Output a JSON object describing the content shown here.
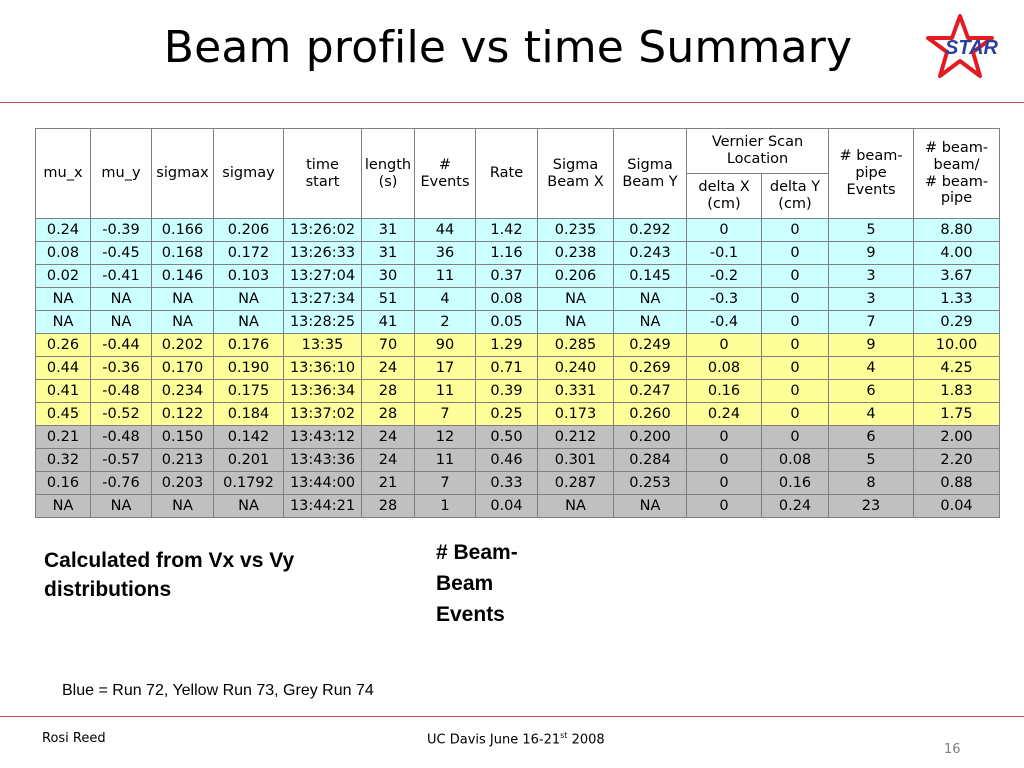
{
  "title": "Beam profile vs time Summary",
  "logo_text": "STAR",
  "colors": {
    "accent_rule": "#c0504d",
    "row_blue": "#ccffff",
    "row_yellow": "#ffff99",
    "row_grey": "#c0c0c0",
    "logo_red": "#e31b23",
    "logo_blue": "#2b3f9e"
  },
  "table": {
    "headers": {
      "mu_x": "mu_x",
      "mu_y": "mu_y",
      "sigmax": "sigmax",
      "sigmay": "sigmay",
      "time_start": [
        "time",
        "start"
      ],
      "length": [
        "length",
        "(s)"
      ],
      "events": [
        "#",
        "Events"
      ],
      "rate": "Rate",
      "sigma_beam_x": [
        "Sigma",
        "Beam X"
      ],
      "sigma_beam_y": [
        "Sigma",
        "Beam Y"
      ],
      "vernier": [
        "Vernier Scan",
        "Location"
      ],
      "delta_x": [
        "delta X",
        "(cm)"
      ],
      "delta_y": [
        "delta Y",
        "(cm)"
      ],
      "beam_pipe_events": [
        "# beam-",
        "pipe",
        "Events"
      ],
      "ratio": [
        "# beam-",
        "beam/",
        "# beam-",
        "pipe"
      ]
    },
    "rows": [
      {
        "group": "blue",
        "cells": [
          "0.24",
          "-0.39",
          "0.166",
          "0.206",
          "13:26:02",
          "31",
          "44",
          "1.42",
          "0.235",
          "0.292",
          "0",
          "0",
          "5",
          "8.80"
        ]
      },
      {
        "group": "blue",
        "cells": [
          "0.08",
          "-0.45",
          "0.168",
          "0.172",
          "13:26:33",
          "31",
          "36",
          "1.16",
          "0.238",
          "0.243",
          "-0.1",
          "0",
          "9",
          "4.00"
        ]
      },
      {
        "group": "blue",
        "cells": [
          "0.02",
          "-0.41",
          "0.146",
          "0.103",
          "13:27:04",
          "30",
          "11",
          "0.37",
          "0.206",
          "0.145",
          "-0.2",
          "0",
          "3",
          "3.67"
        ]
      },
      {
        "group": "blue",
        "cells": [
          "NA",
          "NA",
          "NA",
          "NA",
          "13:27:34",
          "51",
          "4",
          "0.08",
          "NA",
          "NA",
          "-0.3",
          "0",
          "3",
          "1.33"
        ]
      },
      {
        "group": "blue",
        "cells": [
          "NA",
          "NA",
          "NA",
          "NA",
          "13:28:25",
          "41",
          "2",
          "0.05",
          "NA",
          "NA",
          "-0.4",
          "0",
          "7",
          "0.29"
        ]
      },
      {
        "group": "yellow",
        "cells": [
          "0.26",
          "-0.44",
          "0.202",
          "0.176",
          "13:35",
          "70",
          "90",
          "1.29",
          "0.285",
          "0.249",
          "0",
          "0",
          "9",
          "10.00"
        ]
      },
      {
        "group": "yellow",
        "cells": [
          "0.44",
          "-0.36",
          "0.170",
          "0.190",
          "13:36:10",
          "24",
          "17",
          "0.71",
          "0.240",
          "0.269",
          "0.08",
          "0",
          "4",
          "4.25"
        ]
      },
      {
        "group": "yellow",
        "cells": [
          "0.41",
          "-0.48",
          "0.234",
          "0.175",
          "13:36:34",
          "28",
          "11",
          "0.39",
          "0.331",
          "0.247",
          "0.16",
          "0",
          "6",
          "1.83"
        ]
      },
      {
        "group": "yellow",
        "cells": [
          "0.45",
          "-0.52",
          "0.122",
          "0.184",
          "13:37:02",
          "28",
          "7",
          "0.25",
          "0.173",
          "0.260",
          "0.24",
          "0",
          "4",
          "1.75"
        ]
      },
      {
        "group": "grey",
        "cells": [
          "0.21",
          "-0.48",
          "0.150",
          "0.142",
          "13:43:12",
          "24",
          "12",
          "0.50",
          "0.212",
          "0.200",
          "0",
          "0",
          "6",
          "2.00"
        ]
      },
      {
        "group": "grey",
        "cells": [
          "0.32",
          "-0.57",
          "0.213",
          "0.201",
          "13:43:36",
          "24",
          "11",
          "0.46",
          "0.301",
          "0.284",
          "0",
          "0.08",
          "5",
          "2.20"
        ]
      },
      {
        "group": "grey",
        "cells": [
          "0.16",
          "-0.76",
          "0.203",
          "0.1792",
          "13:44:00",
          "21",
          "7",
          "0.33",
          "0.287",
          "0.253",
          "0",
          "0.16",
          "8",
          "0.88"
        ]
      },
      {
        "group": "grey",
        "cells": [
          "NA",
          "NA",
          "NA",
          "NA",
          "13:44:21",
          "28",
          "1",
          "0.04",
          "NA",
          "NA",
          "0",
          "0.24",
          "23",
          "0.04"
        ]
      }
    ]
  },
  "note_left": "Calculated from Vx vs Vy distributions",
  "note_mid": "# Beam-Beam Events",
  "legend": "Blue = Run 72, Yellow Run 73, Grey Run 74",
  "footer": {
    "author": "Rosi Reed",
    "event_prefix": "UC Davis June 16-21",
    "event_sup": "st",
    "event_suffix": " 2008",
    "page": "16"
  }
}
